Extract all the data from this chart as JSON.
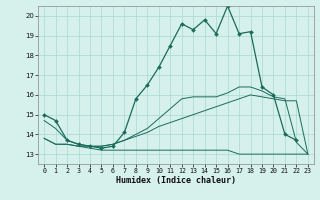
{
  "title": "",
  "xlabel": "Humidex (Indice chaleur)",
  "xlim": [
    -0.5,
    23.5
  ],
  "ylim": [
    12.5,
    20.5
  ],
  "yticks": [
    13,
    14,
    15,
    16,
    17,
    18,
    19,
    20
  ],
  "xticks": [
    0,
    1,
    2,
    3,
    4,
    5,
    6,
    7,
    8,
    9,
    10,
    11,
    12,
    13,
    14,
    15,
    16,
    17,
    18,
    19,
    20,
    21,
    22,
    23
  ],
  "bg_color": "#d6f0ec",
  "grid_color": "#aad8d2",
  "line_color": "#1a6b5a",
  "curve1_x": [
    0,
    1,
    2,
    3,
    4,
    5,
    6,
    7,
    8,
    9,
    10,
    11,
    12,
    13,
    14,
    15,
    16,
    17,
    18,
    19,
    20,
    21,
    22
  ],
  "curve1_y": [
    15.0,
    14.7,
    13.7,
    13.5,
    13.4,
    13.3,
    13.4,
    14.1,
    15.8,
    16.5,
    17.4,
    18.5,
    19.6,
    19.3,
    19.8,
    19.1,
    20.5,
    19.1,
    19.2,
    16.4,
    16.0,
    14.0,
    13.7
  ],
  "curve2_x": [
    0,
    1,
    2,
    3,
    4,
    5,
    6,
    7,
    8,
    9,
    10,
    11,
    12,
    13,
    14,
    15,
    16,
    17,
    18,
    19,
    20,
    21,
    22,
    23
  ],
  "curve2_y": [
    13.8,
    13.5,
    13.5,
    13.4,
    13.3,
    13.2,
    13.2,
    13.2,
    13.2,
    13.2,
    13.2,
    13.2,
    13.2,
    13.2,
    13.2,
    13.2,
    13.2,
    13.0,
    13.0,
    13.0,
    13.0,
    13.0,
    13.0,
    13.0
  ],
  "curve3_x": [
    0,
    1,
    2,
    3,
    4,
    5,
    6,
    7,
    8,
    9,
    10,
    11,
    12,
    13,
    14,
    15,
    16,
    17,
    18,
    19,
    20,
    21,
    22,
    23
  ],
  "curve3_y": [
    13.8,
    13.5,
    13.5,
    13.4,
    13.4,
    13.4,
    13.5,
    13.7,
    13.9,
    14.1,
    14.4,
    14.6,
    14.8,
    15.0,
    15.2,
    15.4,
    15.6,
    15.8,
    16.0,
    15.9,
    15.8,
    15.7,
    15.7,
    13.0
  ],
  "curve4_x": [
    0,
    1,
    2,
    3,
    4,
    5,
    6,
    7,
    8,
    9,
    10,
    11,
    12,
    13,
    14,
    15,
    16,
    17,
    18,
    19,
    20,
    21,
    22,
    23
  ],
  "curve4_y": [
    14.7,
    14.3,
    13.7,
    13.5,
    13.4,
    13.4,
    13.5,
    13.7,
    14.0,
    14.3,
    14.8,
    15.3,
    15.8,
    15.9,
    15.9,
    15.9,
    16.1,
    16.4,
    16.4,
    16.2,
    15.9,
    15.8,
    13.6,
    13.0
  ]
}
